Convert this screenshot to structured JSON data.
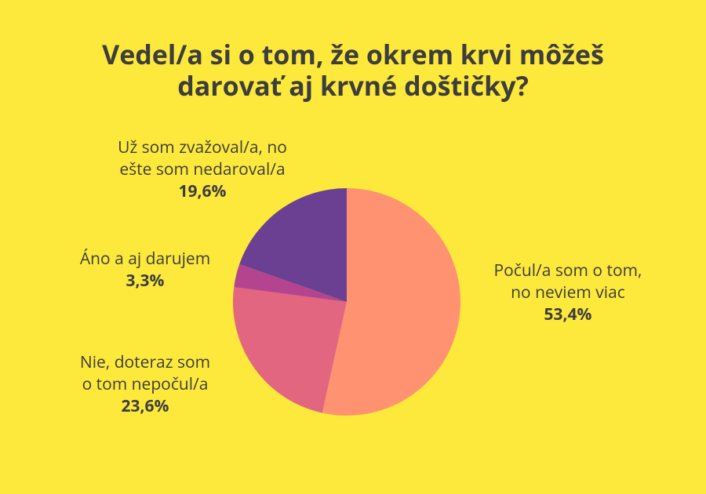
{
  "chart_data": {
    "type": "pie",
    "title": "Vedel/a si o tom, že okrem krvi môžeš\ndarovať aj krvné doštičky?",
    "categories": [
      "Počul/a som o tom,\nno neviem viac",
      "Nie, doteraz som\no tom nepočul/a",
      "Áno a aj darujem",
      "Už som zvažoval/a, no\nešte som nedaroval/a"
    ],
    "values": [
      53.4,
      23.6,
      3.3,
      19.6
    ],
    "value_labels": [
      "53,4%",
      "23,6%",
      "3,3%",
      "19,6%"
    ],
    "colors": [
      "#fe9271",
      "#e2667f",
      "#b4448f",
      "#6b3f92"
    ]
  }
}
